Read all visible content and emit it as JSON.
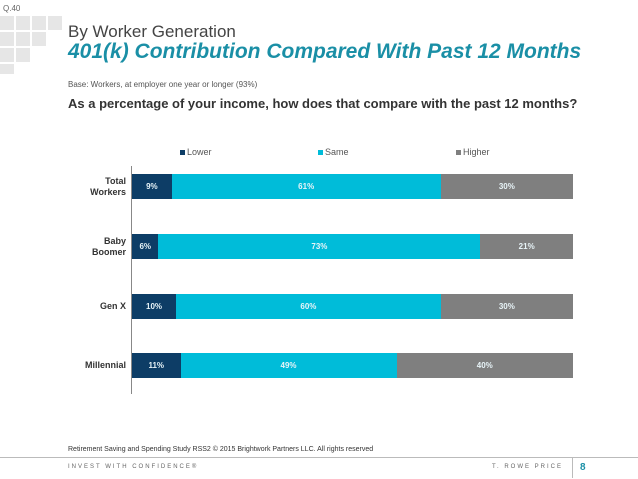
{
  "question_number": "Q.40",
  "header": {
    "title_line1": "By Worker Generation",
    "title_line2": "401(k) Contribution Compared With Past 12 Months"
  },
  "base_text": "Base: Workers, at employer one year or longer (93%)",
  "question_text": "As a percentage of your income, how does that compare with the past 12 months?",
  "colors": {
    "lower": "#0d3d66",
    "same": "#00bcd9",
    "higher": "#7f7f7f",
    "accent": "#1a8fa6"
  },
  "chart_data": {
    "type": "bar",
    "orientation": "horizontal",
    "stacked": true,
    "percent_stacked": true,
    "categories": [
      [
        "Total",
        "Workers"
      ],
      [
        "Baby",
        "Boomer"
      ],
      [
        "Gen X"
      ],
      [
        "Millennial"
      ]
    ],
    "series": [
      {
        "name": "Lower",
        "key": "lower",
        "values": [
          9,
          6,
          10,
          11
        ],
        "labels": [
          "9%",
          "6%",
          "10%",
          "11%"
        ]
      },
      {
        "name": "Same",
        "key": "same",
        "values": [
          61,
          73,
          60,
          49
        ],
        "labels": [
          "61%",
          "73%",
          "60%",
          "49%"
        ]
      },
      {
        "name": "Higher",
        "key": "higher",
        "values": [
          30,
          21,
          30,
          40
        ],
        "labels": [
          "30%",
          "21%",
          "30%",
          "40%"
        ]
      }
    ],
    "legend": [
      "Lower",
      "Same",
      "Higher"
    ],
    "legend_position": "top",
    "xlim": [
      0,
      100
    ]
  },
  "footer": {
    "source": "Retirement Saving and Spending Study RSS2 © 2015 Brightwork Partners LLC. All rights reserved",
    "tagline": "INVEST WITH CONFIDENCE®",
    "brand": "T. ROWE PRICE",
    "page_number": "8"
  }
}
